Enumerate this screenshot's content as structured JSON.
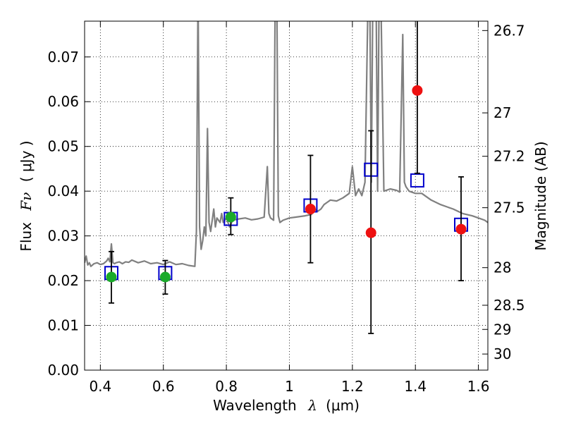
{
  "chart_data": {
    "type": "scatter",
    "title": "",
    "xlabel": "Wavelength",
    "xlabel_symbol": "λ",
    "xlabel_unit": "(μm)",
    "ylabel": "Flux",
    "ylabel_symbol": "Fν",
    "ylabel_unit": "( μJy )",
    "y2label": "Magnitude (AB)",
    "xlim": [
      0.35,
      1.63
    ],
    "ylim": [
      0.0,
      0.078
    ],
    "grid": true,
    "x_ticks": [
      {
        "value": 0.4,
        "label": "0.4"
      },
      {
        "value": 0.6,
        "label": "0.6"
      },
      {
        "value": 0.8,
        "label": "0.8"
      },
      {
        "value": 1.0,
        "label": "1"
      },
      {
        "value": 1.2,
        "label": "1.2"
      },
      {
        "value": 1.4,
        "label": "1.4"
      },
      {
        "value": 1.6,
        "label": "1.6"
      }
    ],
    "y_ticks": [
      {
        "value": 0.0,
        "label": "0.00"
      },
      {
        "value": 0.01,
        "label": "0.01"
      },
      {
        "value": 0.02,
        "label": "0.02"
      },
      {
        "value": 0.03,
        "label": "0.03"
      },
      {
        "value": 0.04,
        "label": "0.04"
      },
      {
        "value": 0.05,
        "label": "0.05"
      },
      {
        "value": 0.06,
        "label": "0.06"
      },
      {
        "value": 0.07,
        "label": "0.07"
      }
    ],
    "y2_ticks": [
      {
        "flux": 0.0759,
        "label": "26.7"
      },
      {
        "flux": 0.0575,
        "label": "27"
      },
      {
        "flux": 0.0478,
        "label": "27.2"
      },
      {
        "flux": 0.0363,
        "label": "27.5"
      },
      {
        "flux": 0.0229,
        "label": "28"
      },
      {
        "flux": 0.0145,
        "label": "28.5"
      },
      {
        "flux": 0.0091,
        "label": "29"
      },
      {
        "flux": 0.0036,
        "label": "30"
      }
    ],
    "colors": {
      "spectrum": "#808080",
      "model": "#0000cc",
      "green": "#1aaa2a",
      "red": "#ee1111",
      "errorbar": "#000000"
    },
    "spectrum": {
      "x": [
        0.35,
        0.355,
        0.36,
        0.365,
        0.37,
        0.38,
        0.39,
        0.4,
        0.41,
        0.42,
        0.425,
        0.43,
        0.435,
        0.44,
        0.445,
        0.45,
        0.46,
        0.47,
        0.48,
        0.49,
        0.5,
        0.52,
        0.54,
        0.56,
        0.58,
        0.6,
        0.62,
        0.64,
        0.66,
        0.68,
        0.7,
        0.705,
        0.71,
        0.715,
        0.72,
        0.725,
        0.73,
        0.735,
        0.74,
        0.745,
        0.75,
        0.76,
        0.765,
        0.77,
        0.78,
        0.785,
        0.79,
        0.8,
        0.81,
        0.82,
        0.84,
        0.86,
        0.88,
        0.9,
        0.92,
        0.93,
        0.935,
        0.94,
        0.95,
        0.955,
        0.96,
        0.965,
        0.97,
        0.98,
        1.0,
        1.02,
        1.05,
        1.07,
        1.08,
        1.09,
        1.1,
        1.11,
        1.12,
        1.13,
        1.15,
        1.17,
        1.19,
        1.2,
        1.21,
        1.22,
        1.23,
        1.24,
        1.25,
        1.255,
        1.26,
        1.265,
        1.27,
        1.275,
        1.28,
        1.285,
        1.29,
        1.3,
        1.32,
        1.34,
        1.35,
        1.36,
        1.365,
        1.37,
        1.38,
        1.4,
        1.42,
        1.45,
        1.48,
        1.5,
        1.52,
        1.55,
        1.58,
        1.6,
        1.62,
        1.63
      ],
      "y": [
        0.024,
        0.0255,
        0.0235,
        0.024,
        0.0232,
        0.0238,
        0.024,
        0.0236,
        0.0238,
        0.0244,
        0.025,
        0.0242,
        0.0282,
        0.024,
        0.0238,
        0.024,
        0.0242,
        0.0238,
        0.0242,
        0.0241,
        0.0246,
        0.024,
        0.0244,
        0.0238,
        0.024,
        0.0236,
        0.0242,
        0.0236,
        0.0238,
        0.0234,
        0.0232,
        0.031,
        0.085,
        0.032,
        0.027,
        0.029,
        0.032,
        0.03,
        0.054,
        0.033,
        0.031,
        0.036,
        0.032,
        0.034,
        0.033,
        0.035,
        0.033,
        0.034,
        0.032,
        0.0335,
        0.0338,
        0.034,
        0.0336,
        0.0338,
        0.0342,
        0.0455,
        0.035,
        0.034,
        0.0335,
        0.085,
        0.085,
        0.0345,
        0.033,
        0.0335,
        0.034,
        0.0342,
        0.0345,
        0.0348,
        0.036,
        0.0355,
        0.036,
        0.037,
        0.0375,
        0.038,
        0.0378,
        0.0385,
        0.0395,
        0.0455,
        0.039,
        0.0405,
        0.039,
        0.042,
        0.085,
        0.085,
        0.042,
        0.085,
        0.085,
        0.085,
        0.04,
        0.085,
        0.085,
        0.04,
        0.0405,
        0.0402,
        0.0398,
        0.075,
        0.042,
        0.041,
        0.04,
        0.0395,
        0.0395,
        0.038,
        0.037,
        0.0365,
        0.036,
        0.035,
        0.0345,
        0.034,
        0.0335,
        0.033
      ]
    },
    "model_points": [
      {
        "x": 0.435,
        "y": 0.0217
      },
      {
        "x": 0.606,
        "y": 0.0217
      },
      {
        "x": 0.814,
        "y": 0.0338
      },
      {
        "x": 1.067,
        "y": 0.0368
      },
      {
        "x": 1.259,
        "y": 0.0448
      },
      {
        "x": 1.406,
        "y": 0.0424
      },
      {
        "x": 1.545,
        "y": 0.0325
      }
    ],
    "measurements": [
      {
        "x": 0.435,
        "y": 0.0208,
        "err_low": 0.015,
        "err_high": 0.0265,
        "color": "green"
      },
      {
        "x": 0.606,
        "y": 0.0208,
        "err_low": 0.017,
        "err_high": 0.0245,
        "color": "green"
      },
      {
        "x": 0.814,
        "y": 0.0342,
        "err_low": 0.0303,
        "err_high": 0.0385,
        "color": "green"
      },
      {
        "x": 1.067,
        "y": 0.036,
        "err_low": 0.024,
        "err_high": 0.048,
        "color": "red"
      },
      {
        "x": 1.259,
        "y": 0.0307,
        "err_low": 0.0082,
        "err_high": 0.0535,
        "color": "red"
      },
      {
        "x": 1.406,
        "y": 0.0625,
        "err_low": 0.044,
        "err_high": 0.08,
        "color": "red"
      },
      {
        "x": 1.545,
        "y": 0.0315,
        "err_low": 0.02,
        "err_high": 0.0432,
        "color": "red"
      }
    ]
  }
}
